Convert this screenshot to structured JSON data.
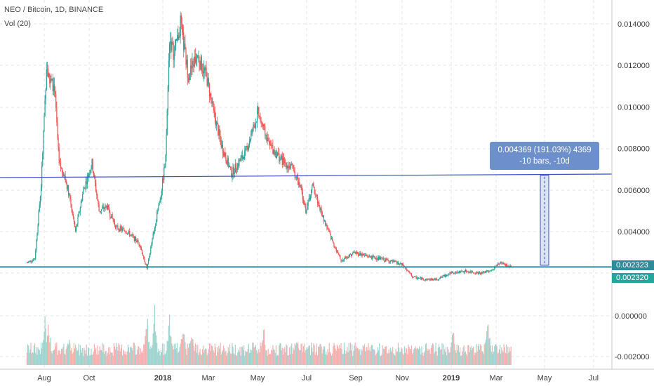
{
  "legend": {
    "symbol_line": "NEO / Bitcoin, 1D, BINANCE",
    "volume_line": "Vol (20)"
  },
  "colors": {
    "up": "#26a69a",
    "down": "#ef5350",
    "vol_up": "#9fd4cf",
    "vol_down": "#f5b1b0",
    "level_line": "#3a4fc7",
    "support_line": "#2e8b9a",
    "callout_bg": "#6d8fcb",
    "badge_last": "#2e8b9a",
    "badge_current": "#26a69a",
    "grid": "#e6e6e6"
  },
  "measure_callout": {
    "line1": "0.004369 (191.03%) 4369",
    "line2": "-10 bars, -10d"
  },
  "price_badges": {
    "last": "0.002323",
    "current": "0.002320"
  },
  "chart_data": {
    "type": "candlestick",
    "title": "NEO / Bitcoin, 1D, BINANCE",
    "price_axis": {
      "range": [
        0.0001,
        0.0152
      ],
      "ticks": [
        0.004,
        0.006,
        0.008,
        0.01,
        0.012,
        0.014
      ],
      "tick_labels": [
        "0.004000",
        "0.006000",
        "0.008000",
        "0.010000",
        "0.012000",
        "0.014000"
      ]
    },
    "volume_axis": {
      "label": "Vol (20)",
      "ticks": [
        0.0,
        -0.002
      ],
      "tick_labels": [
        "0.000000",
        "-0.002000"
      ]
    },
    "time_axis": {
      "labels": [
        "Aug",
        "Oct",
        "2018",
        "Mar",
        "May",
        "Jul",
        "Sep",
        "Nov",
        "2019",
        "Mar",
        "May",
        "Jul"
      ]
    },
    "horizontal_lines": [
      0.0066,
      0.0023
    ],
    "price_path": [
      [
        "2017-07-10",
        0.0025
      ],
      [
        "2017-07-20",
        0.0027
      ],
      [
        "2017-07-28",
        0.0062
      ],
      [
        "2017-08-04",
        0.012
      ],
      [
        "2017-08-08",
        0.0112
      ],
      [
        "2017-08-14",
        0.011
      ],
      [
        "2017-08-20",
        0.0072
      ],
      [
        "2017-08-26",
        0.0068
      ],
      [
        "2017-09-02",
        0.0058
      ],
      [
        "2017-09-10",
        0.004
      ],
      [
        "2017-09-20",
        0.006
      ],
      [
        "2017-10-01",
        0.0073
      ],
      [
        "2017-10-10",
        0.005
      ],
      [
        "2017-10-20",
        0.0052
      ],
      [
        "2017-11-01",
        0.0042
      ],
      [
        "2017-11-15",
        0.004
      ],
      [
        "2017-12-01",
        0.0034
      ],
      [
        "2017-12-10",
        0.0022
      ],
      [
        "2017-12-20",
        0.0042
      ],
      [
        "2017-12-28",
        0.0058
      ],
      [
        "2018-01-03",
        0.0075
      ],
      [
        "2018-01-08",
        0.0133
      ],
      [
        "2018-01-14",
        0.0125
      ],
      [
        "2018-01-22",
        0.014
      ],
      [
        "2018-02-01",
        0.0115
      ],
      [
        "2018-02-12",
        0.0125
      ],
      [
        "2018-02-24",
        0.0115
      ],
      [
        "2018-03-05",
        0.0098
      ],
      [
        "2018-03-15",
        0.0082
      ],
      [
        "2018-03-28",
        0.0068
      ],
      [
        "2018-04-15",
        0.0078
      ],
      [
        "2018-05-01",
        0.0097
      ],
      [
        "2018-05-15",
        0.0082
      ],
      [
        "2018-06-01",
        0.0074
      ],
      [
        "2018-06-15",
        0.007
      ],
      [
        "2018-06-25",
        0.006
      ],
      [
        "2018-07-01",
        0.005
      ],
      [
        "2018-07-10",
        0.0062
      ],
      [
        "2018-07-20",
        0.005
      ],
      [
        "2018-08-01",
        0.0038
      ],
      [
        "2018-08-15",
        0.0026
      ],
      [
        "2018-09-01",
        0.003
      ],
      [
        "2018-09-20",
        0.0028
      ],
      [
        "2018-10-15",
        0.0026
      ],
      [
        "2018-11-01",
        0.0024
      ],
      [
        "2018-11-15",
        0.0018
      ],
      [
        "2018-12-01",
        0.0017
      ],
      [
        "2018-12-15",
        0.0017
      ],
      [
        "2019-01-01",
        0.002
      ],
      [
        "2019-01-20",
        0.0021
      ],
      [
        "2019-02-10",
        0.002
      ],
      [
        "2019-02-25",
        0.0022
      ],
      [
        "2019-03-05",
        0.0025
      ],
      [
        "2019-03-20",
        0.0023
      ]
    ],
    "volume_peaks": [
      [
        "2017-08-02",
        0.00045
      ],
      [
        "2017-08-06",
        0.0005
      ],
      [
        "2017-09-01",
        0.0003
      ],
      [
        "2017-12-10",
        0.0005
      ],
      [
        "2017-12-20",
        0.00055
      ],
      [
        "2018-01-08",
        0.0005
      ],
      [
        "2018-01-25",
        0.00045
      ],
      [
        "2018-02-05",
        0.0004
      ],
      [
        "2018-05-08",
        0.0004
      ],
      [
        "2018-06-20",
        0.0003
      ],
      [
        "2018-08-15",
        0.00025
      ],
      [
        "2019-01-05",
        0.00035
      ],
      [
        "2019-02-18",
        0.00055
      ]
    ]
  }
}
